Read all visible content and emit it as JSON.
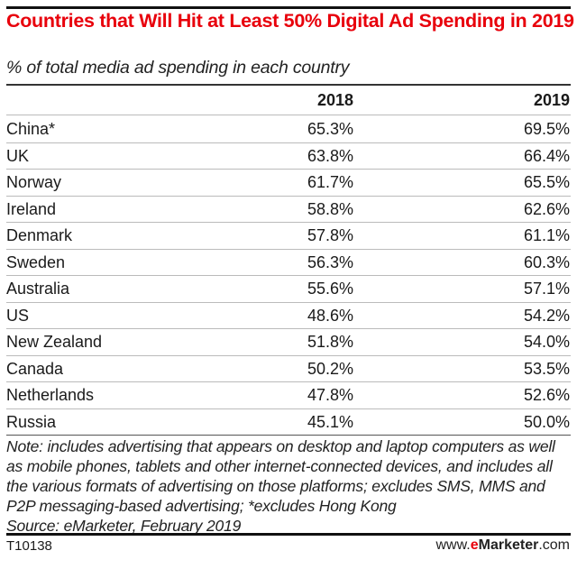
{
  "title": "Countries that Will Hit at Least 50% Digital Ad Spending in 2019",
  "subtitle": "% of total media ad spending in each country",
  "columns": [
    "",
    "2018",
    "2019"
  ],
  "rows": [
    {
      "country": "China*",
      "y2018": "65.3%",
      "y2019": "69.5%"
    },
    {
      "country": "UK",
      "y2018": "63.8%",
      "y2019": "66.4%"
    },
    {
      "country": "Norway",
      "y2018": "61.7%",
      "y2019": "65.5%"
    },
    {
      "country": "Ireland",
      "y2018": "58.8%",
      "y2019": "62.6%"
    },
    {
      "country": "Denmark",
      "y2018": "57.8%",
      "y2019": "61.1%"
    },
    {
      "country": "Sweden",
      "y2018": "56.3%",
      "y2019": "60.3%"
    },
    {
      "country": "Australia",
      "y2018": "55.6%",
      "y2019": "57.1%"
    },
    {
      "country": "US",
      "y2018": "48.6%",
      "y2019": "54.2%"
    },
    {
      "country": "New Zealand",
      "y2018": "51.8%",
      "y2019": "54.0%"
    },
    {
      "country": "Canada",
      "y2018": "50.2%",
      "y2019": "53.5%"
    },
    {
      "country": "Netherlands",
      "y2018": "47.8%",
      "y2019": "52.6%"
    },
    {
      "country": "Russia",
      "y2018": "45.1%",
      "y2019": "50.0%"
    }
  ],
  "note": "Note: includes advertising that appears on desktop and laptop computers as well as mobile phones, tablets and other internet-connected devices, and includes all the various formats of advertising on those platforms; excludes SMS, MMS and P2P messaging-based advertising; *excludes Hong Kong",
  "source": "Source: eMarketer, February 2019",
  "footer": {
    "id": "T10138",
    "brand_prefix": "www.",
    "brand_e": "e",
    "brand_name": "Marketer",
    "brand_suffix": ".com"
  },
  "colors": {
    "title": "#e8000b",
    "brand_accent": "#e8000b"
  }
}
